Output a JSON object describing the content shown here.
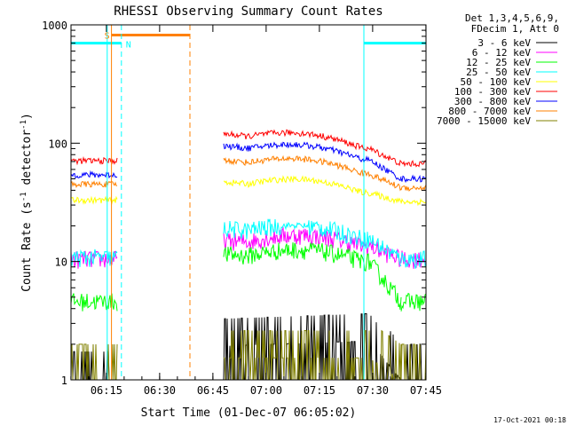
{
  "chart_data": {
    "type": "line",
    "title": "RHESSI Observing Summary Count Rates",
    "xlabel": "Start Time (01-Dec-07 06:05:02)",
    "ylabel_main": "Count Rate (s",
    "ylabel_sup1": "-1",
    "ylabel_mid": " detector",
    "ylabel_sup2": "-1",
    "ylabel_end": ")",
    "yscale": "log",
    "ylim": [
      1,
      1000
    ],
    "xlim_minutes": [
      0,
      100
    ],
    "x_tick_labels": [
      "06:15",
      "06:30",
      "06:45",
      "07:00",
      "07:15",
      "07:30",
      "07:45"
    ],
    "x_tick_minutes": [
      9.97,
      24.97,
      39.97,
      54.97,
      69.97,
      84.97,
      99.97
    ],
    "y_tick_labels": [
      "1",
      "10",
      "100",
      "1000"
    ],
    "y_tick_values": [
      1,
      10,
      100,
      1000
    ],
    "legend_header": [
      "Det 1,3,4,5,6,9,",
      "FDecim 1, Att 0"
    ],
    "legend_placement": "right",
    "series": [
      {
        "name": "3 - 6 keV",
        "color": "#000000",
        "values": [
          [
            0,
            1.3
          ],
          [
            13,
            1.3
          ],
          [
            43,
            2.9
          ],
          [
            84,
            3.2
          ],
          [
            93,
            1.5
          ],
          [
            100,
            1.5
          ]
        ]
      },
      {
        "name": "6 - 12 keV",
        "color": "#ff00ff",
        "values": [
          [
            0,
            10.5
          ],
          [
            13,
            10.5
          ],
          [
            43,
            15
          ],
          [
            84,
            13.5
          ],
          [
            93,
            10.5
          ],
          [
            100,
            10.5
          ]
        ]
      },
      {
        "name": "12 - 25 keV",
        "color": "#00ff00",
        "values": [
          [
            0,
            4.6
          ],
          [
            13,
            4.6
          ],
          [
            43,
            11.5
          ],
          [
            84,
            10
          ],
          [
            93,
            4.6
          ],
          [
            100,
            4.6
          ]
        ]
      },
      {
        "name": "25 - 50 keV",
        "color": "#00ffff",
        "values": [
          [
            0,
            10.8
          ],
          [
            13,
            10.8
          ],
          [
            43,
            19
          ],
          [
            84,
            15.5
          ],
          [
            93,
            10.5
          ],
          [
            100,
            10.5
          ]
        ]
      },
      {
        "name": "50 - 100 keV",
        "color": "#ffff00",
        "values": [
          [
            0,
            33
          ],
          [
            13,
            33
          ],
          [
            43,
            47
          ],
          [
            84,
            38
          ],
          [
            93,
            32
          ],
          [
            100,
            32
          ]
        ]
      },
      {
        "name": "100 - 300 keV",
        "color": "#ff0000",
        "values": [
          [
            0,
            71
          ],
          [
            13,
            71
          ],
          [
            43,
            120
          ],
          [
            84,
            90
          ],
          [
            93,
            67
          ],
          [
            100,
            67
          ]
        ]
      },
      {
        "name": "300 - 800 keV",
        "color": "#0000ff",
        "values": [
          [
            0,
            54
          ],
          [
            13,
            54
          ],
          [
            43,
            95
          ],
          [
            84,
            72
          ],
          [
            93,
            50
          ],
          [
            100,
            50
          ]
        ]
      },
      {
        "name": "800 - 7000 keV",
        "color": "#ff8000",
        "values": [
          [
            0,
            45
          ],
          [
            13,
            45
          ],
          [
            43,
            72
          ],
          [
            84,
            55
          ],
          [
            93,
            42
          ],
          [
            100,
            42
          ]
        ]
      },
      {
        "name": "7000 - 15000 keV",
        "color": "#808000",
        "values": [
          [
            0,
            1.5
          ],
          [
            13,
            1.5
          ],
          [
            43,
            2.3
          ],
          [
            84,
            2.3
          ],
          [
            93,
            1.5
          ],
          [
            100,
            1.5
          ]
        ]
      }
    ],
    "annotations": {
      "saa": {
        "label": "S",
        "start_minute": 11.4,
        "end_minute": 33.5,
        "level": 820,
        "color": "#ff8000"
      },
      "night": {
        "label": "N",
        "start_minute": 14.2,
        "end_minute": 82.5,
        "color": "#00ffff"
      },
      "night_bars": [
        {
          "start_minute": 0,
          "end_minute": 14.2,
          "level": 700
        },
        {
          "start_minute": 82.5,
          "end_minute": 100,
          "level": 700
        }
      ],
      "orange_lines_minutes": [
        11.4,
        33.5
      ],
      "cyan_lines_minutes": [
        10.2,
        14.2,
        82.5,
        100
      ]
    },
    "footer_date": "17-Oct-2021 00:18"
  }
}
